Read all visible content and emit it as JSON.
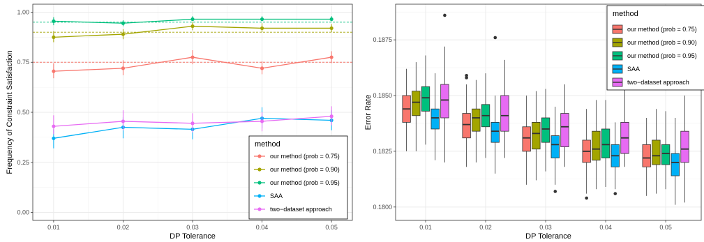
{
  "chart_data": [
    {
      "type": "line",
      "xlabel": "DP Tolerance",
      "ylabel": "Frequency of Constraint Satisfaction",
      "x": [
        0.01,
        0.02,
        0.03,
        0.04,
        0.05
      ],
      "x_tick_labels": [
        "0.01",
        "0.02",
        "0.03",
        "0.04",
        "0.05"
      ],
      "y_tick_labels": [
        "0.00",
        "0.25",
        "0.50",
        "0.75",
        "1.00"
      ],
      "ylim": [
        -0.04,
        1.04
      ],
      "grid": true,
      "legend": {
        "title": "method",
        "placement": "bottom-right",
        "entries": [
          "our method (prob = 0.75)",
          "our method (prob = 0.90)",
          "our method (prob = 0.95)",
          "SAA",
          "two−dataset approach"
        ]
      },
      "series": [
        {
          "name": "our method (prob = 0.75)",
          "color": "#F8766D",
          "reference": 0.75,
          "values": [
            0.705,
            0.72,
            0.775,
            0.72,
            0.775
          ],
          "err_low": [
            0.67,
            0.685,
            0.74,
            0.69,
            0.745
          ],
          "err_high": [
            0.745,
            0.76,
            0.81,
            0.755,
            0.805
          ]
        },
        {
          "name": "our method (prob = 0.90)",
          "color": "#A3A500",
          "reference": 0.9,
          "values": [
            0.875,
            0.89,
            0.93,
            0.92,
            0.92
          ],
          "err_low": [
            0.85,
            0.865,
            0.91,
            0.9,
            0.9
          ],
          "err_high": [
            0.905,
            0.915,
            0.95,
            0.945,
            0.94
          ]
        },
        {
          "name": "our method (prob = 0.95)",
          "color": "#00BF7D",
          "reference": 0.95,
          "values": [
            0.955,
            0.945,
            0.965,
            0.965,
            0.965
          ],
          "err_low": [
            0.935,
            0.93,
            0.955,
            0.955,
            0.955
          ],
          "err_high": [
            0.975,
            0.96,
            0.98,
            0.98,
            0.98
          ]
        },
        {
          "name": "SAA",
          "color": "#00B0F6",
          "values": [
            0.37,
            0.425,
            0.415,
            0.47,
            0.46
          ],
          "err_low": [
            0.32,
            0.37,
            0.365,
            0.42,
            0.41
          ],
          "err_high": [
            0.415,
            0.475,
            0.465,
            0.525,
            0.51
          ]
        },
        {
          "name": "two−dataset approach",
          "color": "#E76BF3",
          "values": [
            0.43,
            0.455,
            0.445,
            0.455,
            0.48
          ],
          "err_low": [
            0.39,
            0.41,
            0.4,
            0.405,
            0.435
          ],
          "err_high": [
            0.485,
            0.51,
            0.495,
            0.5,
            0.53
          ]
        }
      ]
    },
    {
      "type": "box",
      "xlabel": "DP Tolerance",
      "ylabel": "Error Rate",
      "categories": [
        "0.01",
        "0.02",
        "0.03",
        "0.04",
        "0.05"
      ],
      "y_tick_labels": [
        "0.1800",
        "0.1825",
        "0.1850",
        "0.1875"
      ],
      "ylim": [
        0.1794,
        0.1891
      ],
      "grid": true,
      "legend": {
        "title": "method",
        "placement": "top-right",
        "entries": [
          "our method (prob = 0.75)",
          "our method (prob = 0.90)",
          "our method (prob = 0.95)",
          "SAA",
          "two−dataset approach"
        ]
      },
      "series": [
        {
          "name": "our method (prob = 0.75)",
          "color": "#F8766D",
          "boxes": [
            {
              "min": 0.1825,
              "q1": 0.1838,
              "median": 0.1844,
              "q3": 0.185,
              "max": 0.1862,
              "outliers": []
            },
            {
              "min": 0.1818,
              "q1": 0.1831,
              "median": 0.1837,
              "q3": 0.1842,
              "max": 0.1855,
              "outliers": [
                0.1858,
                0.1859
              ]
            },
            {
              "min": 0.181,
              "q1": 0.1825,
              "median": 0.1831,
              "q3": 0.1836,
              "max": 0.185,
              "outliers": []
            },
            {
              "min": 0.1806,
              "q1": 0.182,
              "median": 0.1825,
              "q3": 0.183,
              "max": 0.1844,
              "outliers": [
                0.1804
              ]
            },
            {
              "min": 0.1805,
              "q1": 0.1818,
              "median": 0.1822,
              "q3": 0.1828,
              "max": 0.184,
              "outliers": []
            }
          ]
        },
        {
          "name": "our method (prob = 0.90)",
          "color": "#A3A500",
          "boxes": [
            {
              "min": 0.1825,
              "q1": 0.1841,
              "median": 0.1847,
              "q3": 0.1852,
              "max": 0.1865,
              "outliers": []
            },
            {
              "min": 0.182,
              "q1": 0.1834,
              "median": 0.184,
              "q3": 0.1844,
              "max": 0.1857,
              "outliers": []
            },
            {
              "min": 0.1812,
              "q1": 0.1826,
              "median": 0.1833,
              "q3": 0.1838,
              "max": 0.1852,
              "outliers": []
            },
            {
              "min": 0.1808,
              "q1": 0.1821,
              "median": 0.1826,
              "q3": 0.1834,
              "max": 0.1848,
              "outliers": []
            },
            {
              "min": 0.1806,
              "q1": 0.1819,
              "median": 0.1823,
              "q3": 0.183,
              "max": 0.1844,
              "outliers": []
            }
          ]
        },
        {
          "name": "our method (prob = 0.95)",
          "color": "#00BF7D",
          "boxes": [
            {
              "min": 0.1828,
              "q1": 0.1843,
              "median": 0.1849,
              "q3": 0.1854,
              "max": 0.1868,
              "outliers": []
            },
            {
              "min": 0.1822,
              "q1": 0.1836,
              "median": 0.1841,
              "q3": 0.1846,
              "max": 0.186,
              "outliers": []
            },
            {
              "min": 0.1816,
              "q1": 0.1829,
              "median": 0.1835,
              "q3": 0.184,
              "max": 0.1853,
              "outliers": []
            },
            {
              "min": 0.1809,
              "q1": 0.1822,
              "median": 0.1828,
              "q3": 0.1835,
              "max": 0.1848,
              "outliers": []
            },
            {
              "min": 0.1808,
              "q1": 0.1819,
              "median": 0.1824,
              "q3": 0.1828,
              "max": 0.1843,
              "outliers": []
            }
          ]
        },
        {
          "name": "SAA",
          "color": "#00B0F6",
          "boxes": [
            {
              "min": 0.1821,
              "q1": 0.1835,
              "median": 0.184,
              "q3": 0.1844,
              "max": 0.186,
              "outliers": []
            },
            {
              "min": 0.1815,
              "q1": 0.1829,
              "median": 0.1834,
              "q3": 0.1838,
              "max": 0.185,
              "outliers": [
                0.1876
              ]
            },
            {
              "min": 0.181,
              "q1": 0.1822,
              "median": 0.1828,
              "q3": 0.1832,
              "max": 0.1845,
              "outliers": [
                0.1807
              ]
            },
            {
              "min": 0.1808,
              "q1": 0.1818,
              "median": 0.1823,
              "q3": 0.1828,
              "max": 0.1838,
              "outliers": [
                0.1806
              ]
            },
            {
              "min": 0.1801,
              "q1": 0.1814,
              "median": 0.182,
              "q3": 0.1824,
              "max": 0.184,
              "outliers": []
            }
          ]
        },
        {
          "name": "two−dataset approach",
          "color": "#E76BF3",
          "boxes": [
            {
              "min": 0.182,
              "q1": 0.184,
              "median": 0.1848,
              "q3": 0.1855,
              "max": 0.1872,
              "outliers": [
                0.1886
              ]
            },
            {
              "min": 0.1822,
              "q1": 0.1834,
              "median": 0.1841,
              "q3": 0.185,
              "max": 0.1866,
              "outliers": []
            },
            {
              "min": 0.1818,
              "q1": 0.1827,
              "median": 0.1836,
              "q3": 0.1842,
              "max": 0.1855,
              "outliers": []
            },
            {
              "min": 0.1818,
              "q1": 0.1824,
              "median": 0.1831,
              "q3": 0.1838,
              "max": 0.1858,
              "outliers": [
                0.1865
              ]
            },
            {
              "min": 0.1802,
              "q1": 0.182,
              "median": 0.1826,
              "q3": 0.1834,
              "max": 0.185,
              "outliers": []
            }
          ]
        }
      ]
    }
  ]
}
